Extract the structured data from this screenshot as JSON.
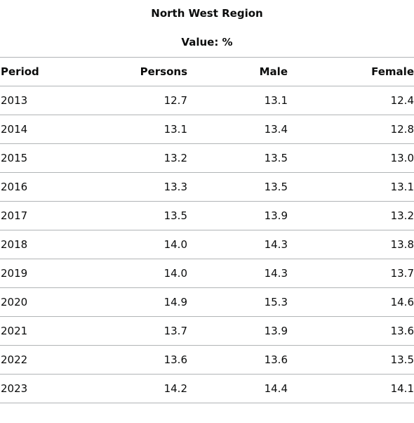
{
  "table": {
    "title": "North West Region",
    "subtitle": "Value: %",
    "headers": [
      "Period",
      "Persons",
      "Male",
      "Female"
    ],
    "rows": [
      [
        "2013",
        "12.7",
        "13.1",
        "12.4"
      ],
      [
        "2014",
        "13.1",
        "13.4",
        "12.8"
      ],
      [
        "2015",
        "13.2",
        "13.5",
        "13.0"
      ],
      [
        "2016",
        "13.3",
        "13.5",
        "13.1"
      ],
      [
        "2017",
        "13.5",
        "13.9",
        "13.2"
      ],
      [
        "2018",
        "14.0",
        "14.3",
        "13.8"
      ],
      [
        "2019",
        "14.0",
        "14.3",
        "13.7"
      ],
      [
        "2020",
        "14.9",
        "15.3",
        "14.6"
      ],
      [
        "2021",
        "13.7",
        "13.9",
        "13.6"
      ],
      [
        "2022",
        "13.6",
        "13.6",
        "13.5"
      ],
      [
        "2023",
        "14.2",
        "14.4",
        "14.1"
      ]
    ]
  }
}
